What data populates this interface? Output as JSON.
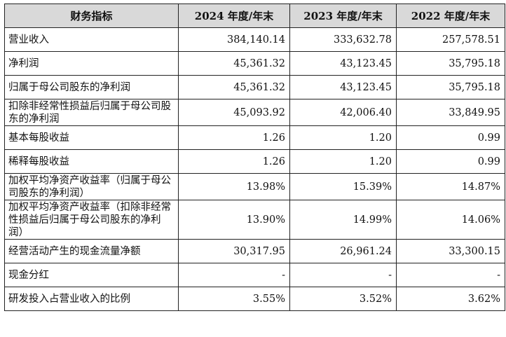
{
  "header": [
    "财务指标",
    "2024 年度/年末",
    "2023 年度/年末",
    "2022 年度/年末"
  ],
  "rows": [
    {
      "label": "营业收入",
      "v2024": "384,140.14",
      "v2023": "333,632.78",
      "v2022": "257,578.51"
    },
    {
      "label": "净利润",
      "v2024": "45,361.32",
      "v2023": "43,123.45",
      "v2022": "35,795.18"
    },
    {
      "label": "归属于母公司股东的净利润",
      "v2024": "45,361.32",
      "v2023": "43,123.45",
      "v2022": "35,795.18"
    },
    {
      "label": "扣除非经常性损益后归属于母公司股东的净利润",
      "v2024": "45,093.92",
      "v2023": "42,006.40",
      "v2022": "33,849.95"
    },
    {
      "label": "基本每股收益",
      "v2024": "1.26",
      "v2023": "1.20",
      "v2022": "0.99"
    },
    {
      "label": "稀释每股收益",
      "v2024": "1.26",
      "v2023": "1.20",
      "v2022": "0.99"
    },
    {
      "label": "加权平均净资产收益率（归属于母公司股东的净利润）",
      "v2024": "13.98%",
      "v2023": "15.39%",
      "v2022": "14.87%"
    },
    {
      "label": "加权平均净资产收益率（扣除非经常性损益后归属于母公司股东的净利润）",
      "v2024": "13.90%",
      "v2023": "14.99%",
      "v2022": "14.06%"
    },
    {
      "label": "经营活动产生的现金流量净额",
      "v2024": "30,317.95",
      "v2023": "26,961.24",
      "v2022": "33,300.15"
    },
    {
      "label": "现金分红",
      "v2024": "-",
      "v2023": "-",
      "v2022": "-"
    },
    {
      "label": "研发投入占营业收入的比例",
      "v2024": "3.55%",
      "v2023": "3.52%",
      "v2022": "3.62%"
    }
  ]
}
